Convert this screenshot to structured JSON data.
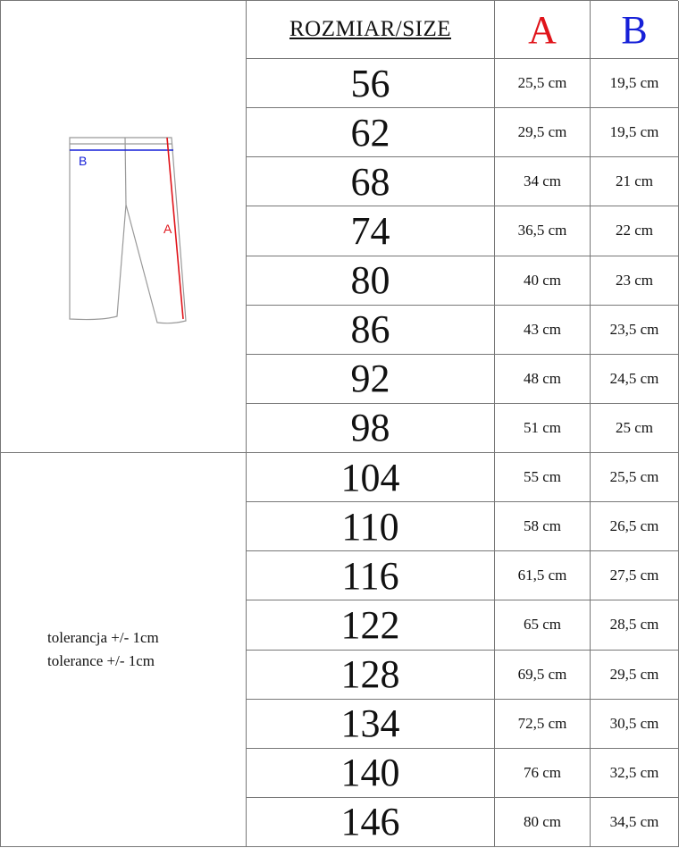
{
  "header": {
    "size_label": "ROZMIAR/SIZE",
    "col_a": "A",
    "col_b": "B"
  },
  "colors": {
    "a": "#e0141a",
    "b": "#1620d8"
  },
  "diagram": {
    "label_a": "A",
    "label_b": "B",
    "icon": "pants-icon"
  },
  "tolerance": [
    "tolerancja +/- 1cm",
    "tolerance +/- 1cm"
  ],
  "rows": [
    {
      "size": "56",
      "a": "25,5 cm",
      "b": "19,5 cm"
    },
    {
      "size": "62",
      "a": "29,5 cm",
      "b": "19,5 cm"
    },
    {
      "size": "68",
      "a": "34 cm",
      "b": "21 cm"
    },
    {
      "size": "74",
      "a": "36,5 cm",
      "b": "22 cm"
    },
    {
      "size": "80",
      "a": "40 cm",
      "b": "23 cm"
    },
    {
      "size": "86",
      "a": "43 cm",
      "b": "23,5 cm"
    },
    {
      "size": "92",
      "a": "48 cm",
      "b": "24,5 cm"
    },
    {
      "size": "98",
      "a": "51 cm",
      "b": "25 cm"
    },
    {
      "size": "104",
      "a": "55 cm",
      "b": "25,5 cm"
    },
    {
      "size": "110",
      "a": "58 cm",
      "b": "26,5 cm"
    },
    {
      "size": "116",
      "a": "61,5 cm",
      "b": "27,5 cm"
    },
    {
      "size": "122",
      "a": "65 cm",
      "b": "28,5 cm"
    },
    {
      "size": "128",
      "a": "69,5 cm",
      "b": "29,5 cm"
    },
    {
      "size": "134",
      "a": "72,5 cm",
      "b": "30,5 cm"
    },
    {
      "size": "140",
      "a": "76 cm",
      "b": "32,5 cm"
    },
    {
      "size": "146",
      "a": "80 cm",
      "b": "34,5 cm"
    }
  ]
}
